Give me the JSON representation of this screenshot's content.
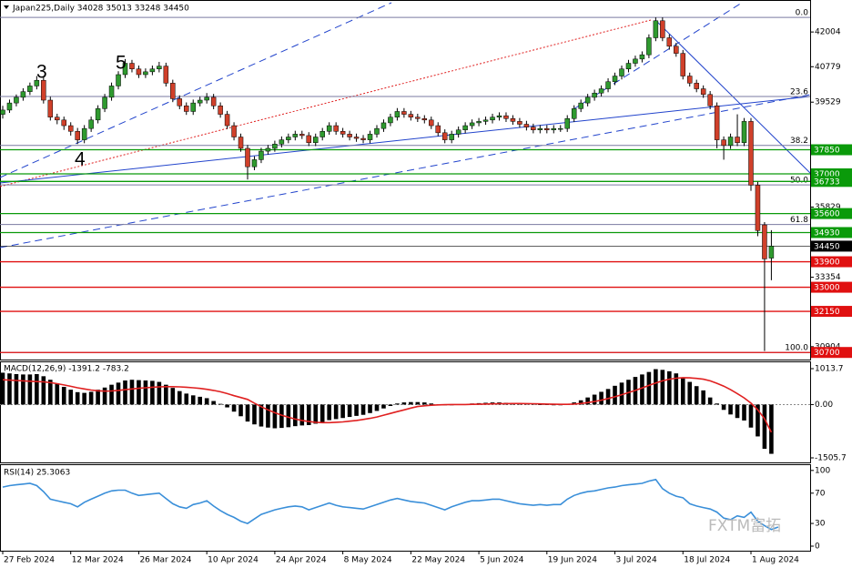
{
  "header": "Japan225,Daily  34028 35013 33248 34450",
  "watermark": "FXTM富拓",
  "chart_data": [
    {
      "type": "candlestick",
      "up_color": "#2f9a2f",
      "down_color": "#d0402a",
      "xlim": [
        -0.4,
        118.7
      ],
      "xticks": [
        {
          "value": 0,
          "label": "27 Feb 2024"
        },
        {
          "value": 10,
          "label": "12 Mar 2024"
        },
        {
          "value": 20,
          "label": "26 Mar 2024"
        },
        {
          "value": 30,
          "label": "10 Apr 2024"
        },
        {
          "value": 40,
          "label": "24 Apr 2024"
        },
        {
          "value": 50,
          "label": "8 May 2024"
        },
        {
          "value": 60,
          "label": "22 May 2024"
        },
        {
          "value": 70,
          "label": "5 Jun 2024"
        },
        {
          "value": 80,
          "label": "19 Jun 2024"
        },
        {
          "value": 90,
          "label": "3 Jul 2024"
        },
        {
          "value": 100,
          "label": "18 Jul 2024"
        },
        {
          "value": 110,
          "label": "1 Aug 2024"
        }
      ],
      "ylim": [
        30450,
        43100
      ],
      "yticks": [
        42004,
        40779,
        39529,
        35829,
        33354,
        30904
      ],
      "levels": [
        {
          "value": 37850,
          "color": "#0a9a0a"
        },
        {
          "value": 37000,
          "color": "#0a9a0a"
        },
        {
          "value": 36733,
          "color": "#0a9a0a"
        },
        {
          "value": 35600,
          "color": "#0a9a0a"
        },
        {
          "value": 34930,
          "color": "#0a9a0a"
        },
        {
          "value": 34450,
          "color": "#000000"
        },
        {
          "value": 33900,
          "color": "#e01010"
        },
        {
          "value": 33000,
          "color": "#e01010"
        },
        {
          "value": 32150,
          "color": "#e01010"
        },
        {
          "value": 30700,
          "color": "#e01010"
        }
      ],
      "fib": {
        "high": 42520,
        "low": 30700,
        "color": "#7a7aa0",
        "levels": [
          {
            "value": 0,
            "label": "0.0"
          },
          23.6,
          38.2,
          {
            "value": 50,
            "label": "50.0"
          },
          61.8,
          {
            "value": 100,
            "label": "100.0"
          }
        ]
      },
      "annotations": [
        "3",
        "4",
        "5"
      ],
      "ohlc": [
        [
          39100,
          39400,
          38950,
          39250
        ],
        [
          39250,
          39620,
          39150,
          39500
        ],
        [
          39500,
          39800,
          39380,
          39700
        ],
        [
          39700,
          40020,
          39580,
          39900
        ],
        [
          39900,
          40220,
          39780,
          40100
        ],
        [
          40100,
          40450,
          39980,
          40300
        ],
        [
          40300,
          40420,
          39480,
          39600
        ],
        [
          39600,
          39720,
          38880,
          39000
        ],
        [
          39000,
          39120,
          38750,
          38900
        ],
        [
          38900,
          39020,
          38550,
          38700
        ],
        [
          38700,
          38820,
          38350,
          38500
        ],
        [
          38500,
          38620,
          38050,
          38200
        ],
        [
          38200,
          38720,
          38080,
          38600
        ],
        [
          38600,
          39020,
          38480,
          38900
        ],
        [
          38900,
          39420,
          38780,
          39300
        ],
        [
          39300,
          39820,
          39180,
          39700
        ],
        [
          39700,
          40220,
          39580,
          40100
        ],
        [
          40100,
          40620,
          39980,
          40500
        ],
        [
          40500,
          41050,
          40380,
          40900
        ],
        [
          40900,
          41020,
          40580,
          40700
        ],
        [
          40700,
          40820,
          40380,
          40500
        ],
        [
          40500,
          40720,
          40380,
          40600
        ],
        [
          40600,
          40820,
          40480,
          40700
        ],
        [
          40700,
          40950,
          40580,
          40800
        ],
        [
          40800,
          40920,
          40080,
          40200
        ],
        [
          40200,
          40320,
          39530,
          39650
        ],
        [
          39650,
          39770,
          39280,
          39400
        ],
        [
          39400,
          39520,
          39080,
          39200
        ],
        [
          39200,
          39620,
          39080,
          39500
        ],
        [
          39500,
          39720,
          39380,
          39600
        ],
        [
          39600,
          39850,
          39480,
          39700
        ],
        [
          39700,
          39820,
          39280,
          39400
        ],
        [
          39400,
          39520,
          38980,
          39100
        ],
        [
          39100,
          39220,
          38580,
          38700
        ],
        [
          38700,
          38820,
          38180,
          38300
        ],
        [
          38300,
          38420,
          37780,
          37900
        ],
        [
          37900,
          38020,
          36800,
          37250
        ],
        [
          37250,
          37620,
          37130,
          37500
        ],
        [
          37500,
          37920,
          37380,
          37800
        ],
        [
          37800,
          38020,
          37680,
          37900
        ],
        [
          37900,
          38170,
          37780,
          38050
        ],
        [
          38050,
          38320,
          37930,
          38200
        ],
        [
          38200,
          38420,
          38080,
          38300
        ],
        [
          38300,
          38520,
          38180,
          38400
        ],
        [
          38400,
          38520,
          38230,
          38350
        ],
        [
          38350,
          38470,
          37980,
          38100
        ],
        [
          38100,
          38420,
          37980,
          38300
        ],
        [
          38300,
          38620,
          38180,
          38500
        ],
        [
          38500,
          38820,
          38380,
          38700
        ],
        [
          38700,
          38820,
          38380,
          38500
        ],
        [
          38500,
          38620,
          38280,
          38400
        ],
        [
          38400,
          38520,
          38180,
          38300
        ],
        [
          38300,
          38420,
          38130,
          38250
        ],
        [
          38250,
          38370,
          38080,
          38200
        ],
        [
          38200,
          38520,
          38080,
          38400
        ],
        [
          38400,
          38720,
          38280,
          38600
        ],
        [
          38600,
          38920,
          38480,
          38800
        ],
        [
          38800,
          39120,
          38680,
          39000
        ],
        [
          39000,
          39320,
          38880,
          39200
        ],
        [
          39200,
          39320,
          38980,
          39100
        ],
        [
          39100,
          39220,
          38880,
          39000
        ],
        [
          39000,
          39120,
          38830,
          38950
        ],
        [
          38950,
          39070,
          38780,
          38900
        ],
        [
          38900,
          39020,
          38580,
          38700
        ],
        [
          38700,
          38820,
          38330,
          38450
        ],
        [
          38450,
          38570,
          38080,
          38200
        ],
        [
          38200,
          38520,
          38080,
          38400
        ],
        [
          38400,
          38670,
          38280,
          38550
        ],
        [
          38550,
          38820,
          38430,
          38700
        ],
        [
          38700,
          38920,
          38580,
          38800
        ],
        [
          38800,
          38970,
          38680,
          38850
        ],
        [
          38850,
          39020,
          38730,
          38900
        ],
        [
          38900,
          39120,
          38780,
          39000
        ],
        [
          39000,
          39170,
          38880,
          39050
        ],
        [
          39050,
          39170,
          38830,
          38950
        ],
        [
          38950,
          39070,
          38730,
          38850
        ],
        [
          38850,
          38970,
          38630,
          38750
        ],
        [
          38750,
          38870,
          38530,
          38650
        ],
        [
          38650,
          38770,
          38430,
          38550
        ],
        [
          38550,
          38720,
          38430,
          38600
        ],
        [
          38600,
          38720,
          38430,
          38550
        ],
        [
          38550,
          38720,
          38430,
          38600
        ],
        [
          38600,
          38720,
          38480,
          38600
        ],
        [
          38600,
          39070,
          38480,
          38950
        ],
        [
          38950,
          39420,
          38830,
          39300
        ],
        [
          39300,
          39620,
          39180,
          39500
        ],
        [
          39500,
          39820,
          39380,
          39700
        ],
        [
          39700,
          39970,
          39580,
          39850
        ],
        [
          39850,
          40120,
          39730,
          40000
        ],
        [
          40000,
          40370,
          39880,
          40250
        ],
        [
          40250,
          40570,
          40130,
          40450
        ],
        [
          40450,
          40820,
          40330,
          40700
        ],
        [
          40700,
          41020,
          40580,
          40900
        ],
        [
          40900,
          41170,
          40780,
          41050
        ],
        [
          41050,
          41320,
          40930,
          41200
        ],
        [
          41200,
          41920,
          41080,
          41800
        ],
        [
          41800,
          42520,
          41680,
          42400
        ],
        [
          42400,
          42520,
          41680,
          41800
        ],
        [
          41800,
          41920,
          41380,
          41500
        ],
        [
          41500,
          41620,
          41130,
          41250
        ],
        [
          41250,
          41370,
          40330,
          40450
        ],
        [
          40450,
          40570,
          40080,
          40200
        ],
        [
          40200,
          40320,
          39880,
          40000
        ],
        [
          40000,
          40120,
          39680,
          39800
        ],
        [
          39800,
          39920,
          39280,
          39400
        ],
        [
          39400,
          39520,
          37900,
          38200
        ],
        [
          38200,
          38320,
          37500,
          38000
        ],
        [
          38000,
          38420,
          37880,
          38300
        ],
        [
          38300,
          39100,
          37980,
          38100
        ],
        [
          38100,
          38970,
          37980,
          38850
        ],
        [
          38850,
          38970,
          36400,
          36600
        ],
        [
          36600,
          36720,
          34800,
          35000
        ],
        [
          35200,
          35300,
          30750,
          34000
        ],
        [
          34028,
          35013,
          33248,
          34450
        ]
      ]
    },
    {
      "type": "macd",
      "title": "MACD(12,26,9) -1391.2 -783.2",
      "ylim": [
        -1634,
        1194
      ],
      "yticks": [
        1013.7,
        {
          "value": 0,
          "label": "0.00"
        },
        -1505.7
      ],
      "series": [
        {
          "type": "histogram",
          "color": "#000000",
          "values": [
            900,
            880,
            860,
            850,
            850,
            860,
            800,
            700,
            600,
            500,
            420,
            350,
            330,
            360,
            420,
            480,
            560,
            620,
            680,
            700,
            690,
            680,
            670,
            640,
            560,
            470,
            380,
            310,
            260,
            220,
            180,
            100,
            20,
            -80,
            -200,
            -330,
            -480,
            -560,
            -620,
            -650,
            -670,
            -660,
            -640,
            -610,
            -590,
            -580,
            -540,
            -490,
            -440,
            -410,
            -380,
            -350,
            -320,
            -290,
            -240,
            -180,
            -110,
            -40,
            30,
            60,
            70,
            70,
            60,
            30,
            0,
            -20,
            -20,
            -10,
            10,
            30,
            40,
            50,
            60,
            60,
            50,
            40,
            30,
            20,
            10,
            0,
            -10,
            -20,
            -20,
            10,
            60,
            120,
            200,
            280,
            360,
            440,
            530,
            620,
            700,
            780,
            850,
            920,
            1000,
            980,
            940,
            880,
            760,
            640,
            520,
            400,
            200,
            30,
            -150,
            -280,
            -380,
            -450,
            -650,
            -900,
            -1250,
            -1391.2
          ]
        },
        {
          "type": "line",
          "color": "#e02020",
          "values": [
            700,
            690,
            680,
            670,
            660,
            650,
            640,
            620,
            590,
            555,
            515,
            475,
            440,
            410,
            390,
            380,
            385,
            400,
            420,
            440,
            460,
            475,
            490,
            500,
            505,
            505,
            500,
            490,
            475,
            455,
            430,
            400,
            360,
            310,
            250,
            200,
            145,
            40,
            -60,
            -150,
            -230,
            -300,
            -360,
            -410,
            -450,
            -480,
            -500,
            -510,
            -510,
            -500,
            -490,
            -470,
            -450,
            -420,
            -390,
            -350,
            -300,
            -250,
            -200,
            -150,
            -100,
            -55,
            -35,
            -20,
            -10,
            -5,
            0,
            0,
            0,
            5,
            10,
            15,
            20,
            25,
            28,
            30,
            30,
            28,
            25,
            20,
            15,
            10,
            5,
            5,
            15,
            30,
            55,
            85,
            125,
            170,
            220,
            280,
            340,
            400,
            470,
            540,
            610,
            670,
            715,
            745,
            760,
            755,
            740,
            715,
            670,
            600,
            520,
            420,
            310,
            190,
            40,
            -150,
            -400,
            -783.2
          ]
        }
      ]
    },
    {
      "type": "line",
      "title": "RSI(14) 25.3063",
      "ylim": [
        -6,
        107
      ],
      "yticks": [
        100,
        70,
        30,
        0
      ],
      "series": [
        {
          "color": "#3a8fd9",
          "values": [
            78,
            80,
            81,
            82,
            83,
            80,
            72,
            62,
            60,
            58,
            56,
            52,
            58,
            62,
            66,
            70,
            73,
            74,
            74,
            70,
            67,
            68,
            69,
            70,
            63,
            56,
            52,
            50,
            55,
            57,
            60,
            53,
            47,
            42,
            38,
            33,
            30,
            36,
            42,
            45,
            48,
            50,
            52,
            53,
            52,
            48,
            51,
            54,
            57,
            54,
            52,
            51,
            50,
            49,
            52,
            55,
            58,
            61,
            63,
            61,
            59,
            58,
            57,
            54,
            51,
            48,
            52,
            55,
            58,
            60,
            60,
            61,
            62,
            62,
            60,
            58,
            56,
            55,
            54,
            55,
            54,
            55,
            55,
            62,
            67,
            70,
            72,
            73,
            75,
            77,
            78,
            80,
            81,
            82,
            83,
            86,
            88,
            76,
            70,
            66,
            64,
            56,
            53,
            51,
            49,
            45,
            37,
            35,
            40,
            38,
            45,
            33,
            27,
            22,
            25.3063
          ]
        }
      ]
    }
  ]
}
